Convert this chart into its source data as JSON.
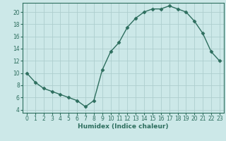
{
  "x": [
    0,
    1,
    2,
    3,
    4,
    5,
    6,
    7,
    8,
    9,
    10,
    11,
    12,
    13,
    14,
    15,
    16,
    17,
    18,
    19,
    20,
    21,
    22,
    23
  ],
  "y": [
    10,
    8.5,
    7.5,
    7,
    6.5,
    6,
    5.5,
    4.5,
    5.5,
    10.5,
    13.5,
    15,
    17.5,
    19,
    20,
    20.5,
    20.5,
    21,
    20.5,
    20,
    18.5,
    16.5,
    13.5,
    12
  ],
  "line_color": "#2d6e5e",
  "marker": "D",
  "marker_size": 2.5,
  "bg_color": "#cce8e8",
  "grid_color": "#aecece",
  "xlabel": "Humidex (Indice chaleur)",
  "xlim": [
    -0.5,
    23.5
  ],
  "ylim": [
    3.5,
    21.5
  ],
  "xticks": [
    0,
    1,
    2,
    3,
    4,
    5,
    6,
    7,
    8,
    9,
    10,
    11,
    12,
    13,
    14,
    15,
    16,
    17,
    18,
    19,
    20,
    21,
    22,
    23
  ],
  "yticks": [
    4,
    6,
    8,
    10,
    12,
    14,
    16,
    18,
    20
  ],
  "tick_color": "#2d6e5e",
  "label_fontsize": 6.5,
  "tick_fontsize": 5.5
}
